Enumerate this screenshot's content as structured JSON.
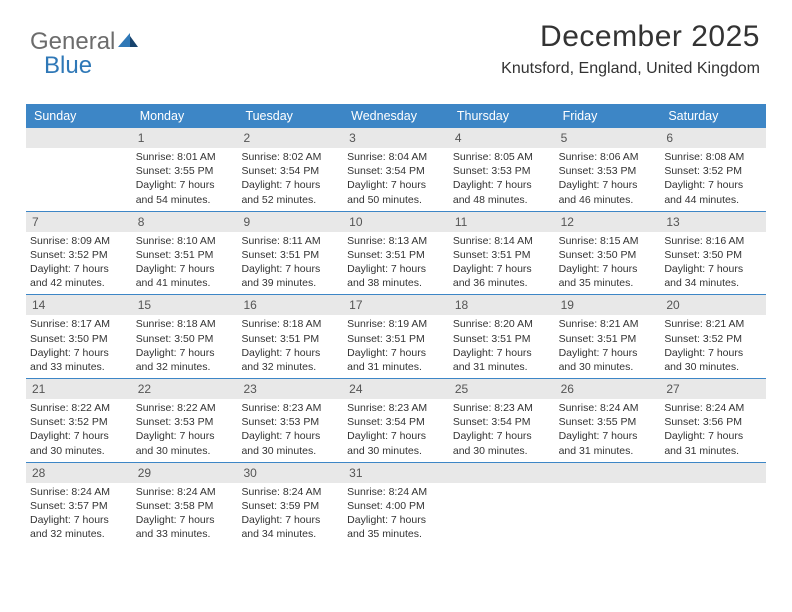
{
  "logo": {
    "text1": "General",
    "text2": "Blue"
  },
  "header": {
    "month_year": "December 2025",
    "location": "Knutsford, England, United Kingdom"
  },
  "theme": {
    "header_bg": "#3d86c6",
    "header_text": "#ffffff",
    "daynum_bg": "#e8e8e8",
    "border": "#3d86c6",
    "body_text": "#333333",
    "font_family": "Arial, Helvetica, sans-serif"
  },
  "day_names": [
    "Sunday",
    "Monday",
    "Tuesday",
    "Wednesday",
    "Thursday",
    "Friday",
    "Saturday"
  ],
  "weeks": [
    [
      {
        "n": "",
        "sr": "",
        "ss": "",
        "dl": ""
      },
      {
        "n": "1",
        "sr": "Sunrise: 8:01 AM",
        "ss": "Sunset: 3:55 PM",
        "dl": "Daylight: 7 hours and 54 minutes."
      },
      {
        "n": "2",
        "sr": "Sunrise: 8:02 AM",
        "ss": "Sunset: 3:54 PM",
        "dl": "Daylight: 7 hours and 52 minutes."
      },
      {
        "n": "3",
        "sr": "Sunrise: 8:04 AM",
        "ss": "Sunset: 3:54 PM",
        "dl": "Daylight: 7 hours and 50 minutes."
      },
      {
        "n": "4",
        "sr": "Sunrise: 8:05 AM",
        "ss": "Sunset: 3:53 PM",
        "dl": "Daylight: 7 hours and 48 minutes."
      },
      {
        "n": "5",
        "sr": "Sunrise: 8:06 AM",
        "ss": "Sunset: 3:53 PM",
        "dl": "Daylight: 7 hours and 46 minutes."
      },
      {
        "n": "6",
        "sr": "Sunrise: 8:08 AM",
        "ss": "Sunset: 3:52 PM",
        "dl": "Daylight: 7 hours and 44 minutes."
      }
    ],
    [
      {
        "n": "7",
        "sr": "Sunrise: 8:09 AM",
        "ss": "Sunset: 3:52 PM",
        "dl": "Daylight: 7 hours and 42 minutes."
      },
      {
        "n": "8",
        "sr": "Sunrise: 8:10 AM",
        "ss": "Sunset: 3:51 PM",
        "dl": "Daylight: 7 hours and 41 minutes."
      },
      {
        "n": "9",
        "sr": "Sunrise: 8:11 AM",
        "ss": "Sunset: 3:51 PM",
        "dl": "Daylight: 7 hours and 39 minutes."
      },
      {
        "n": "10",
        "sr": "Sunrise: 8:13 AM",
        "ss": "Sunset: 3:51 PM",
        "dl": "Daylight: 7 hours and 38 minutes."
      },
      {
        "n": "11",
        "sr": "Sunrise: 8:14 AM",
        "ss": "Sunset: 3:51 PM",
        "dl": "Daylight: 7 hours and 36 minutes."
      },
      {
        "n": "12",
        "sr": "Sunrise: 8:15 AM",
        "ss": "Sunset: 3:50 PM",
        "dl": "Daylight: 7 hours and 35 minutes."
      },
      {
        "n": "13",
        "sr": "Sunrise: 8:16 AM",
        "ss": "Sunset: 3:50 PM",
        "dl": "Daylight: 7 hours and 34 minutes."
      }
    ],
    [
      {
        "n": "14",
        "sr": "Sunrise: 8:17 AM",
        "ss": "Sunset: 3:50 PM",
        "dl": "Daylight: 7 hours and 33 minutes."
      },
      {
        "n": "15",
        "sr": "Sunrise: 8:18 AM",
        "ss": "Sunset: 3:50 PM",
        "dl": "Daylight: 7 hours and 32 minutes."
      },
      {
        "n": "16",
        "sr": "Sunrise: 8:18 AM",
        "ss": "Sunset: 3:51 PM",
        "dl": "Daylight: 7 hours and 32 minutes."
      },
      {
        "n": "17",
        "sr": "Sunrise: 8:19 AM",
        "ss": "Sunset: 3:51 PM",
        "dl": "Daylight: 7 hours and 31 minutes."
      },
      {
        "n": "18",
        "sr": "Sunrise: 8:20 AM",
        "ss": "Sunset: 3:51 PM",
        "dl": "Daylight: 7 hours and 31 minutes."
      },
      {
        "n": "19",
        "sr": "Sunrise: 8:21 AM",
        "ss": "Sunset: 3:51 PM",
        "dl": "Daylight: 7 hours and 30 minutes."
      },
      {
        "n": "20",
        "sr": "Sunrise: 8:21 AM",
        "ss": "Sunset: 3:52 PM",
        "dl": "Daylight: 7 hours and 30 minutes."
      }
    ],
    [
      {
        "n": "21",
        "sr": "Sunrise: 8:22 AM",
        "ss": "Sunset: 3:52 PM",
        "dl": "Daylight: 7 hours and 30 minutes."
      },
      {
        "n": "22",
        "sr": "Sunrise: 8:22 AM",
        "ss": "Sunset: 3:53 PM",
        "dl": "Daylight: 7 hours and 30 minutes."
      },
      {
        "n": "23",
        "sr": "Sunrise: 8:23 AM",
        "ss": "Sunset: 3:53 PM",
        "dl": "Daylight: 7 hours and 30 minutes."
      },
      {
        "n": "24",
        "sr": "Sunrise: 8:23 AM",
        "ss": "Sunset: 3:54 PM",
        "dl": "Daylight: 7 hours and 30 minutes."
      },
      {
        "n": "25",
        "sr": "Sunrise: 8:23 AM",
        "ss": "Sunset: 3:54 PM",
        "dl": "Daylight: 7 hours and 30 minutes."
      },
      {
        "n": "26",
        "sr": "Sunrise: 8:24 AM",
        "ss": "Sunset: 3:55 PM",
        "dl": "Daylight: 7 hours and 31 minutes."
      },
      {
        "n": "27",
        "sr": "Sunrise: 8:24 AM",
        "ss": "Sunset: 3:56 PM",
        "dl": "Daylight: 7 hours and 31 minutes."
      }
    ],
    [
      {
        "n": "28",
        "sr": "Sunrise: 8:24 AM",
        "ss": "Sunset: 3:57 PM",
        "dl": "Daylight: 7 hours and 32 minutes."
      },
      {
        "n": "29",
        "sr": "Sunrise: 8:24 AM",
        "ss": "Sunset: 3:58 PM",
        "dl": "Daylight: 7 hours and 33 minutes."
      },
      {
        "n": "30",
        "sr": "Sunrise: 8:24 AM",
        "ss": "Sunset: 3:59 PM",
        "dl": "Daylight: 7 hours and 34 minutes."
      },
      {
        "n": "31",
        "sr": "Sunrise: 8:24 AM",
        "ss": "Sunset: 4:00 PM",
        "dl": "Daylight: 7 hours and 35 minutes."
      },
      {
        "n": "",
        "sr": "",
        "ss": "",
        "dl": ""
      },
      {
        "n": "",
        "sr": "",
        "ss": "",
        "dl": ""
      },
      {
        "n": "",
        "sr": "",
        "ss": "",
        "dl": ""
      }
    ]
  ]
}
